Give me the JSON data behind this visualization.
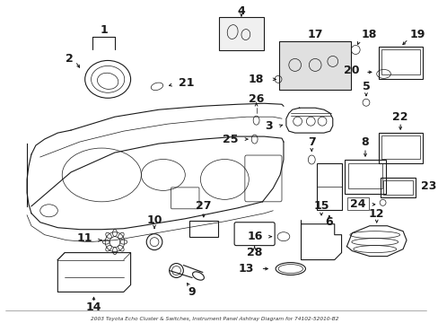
{
  "title": "2003 Toyota Echo Cluster & Switches, Instrument Panel Ashtray Diagram for 74102-52010-B2",
  "bg_color": "#ffffff",
  "line_color": "#1a1a1a",
  "font_size": 8.5,
  "fig_width": 4.89,
  "fig_height": 3.6,
  "dpi": 100,
  "bottom_text": "2003 Toyota Echo Cluster & Switches, Instrument Panel Ashtray Diagram for 74102-52010-B2",
  "border_color": "#aaaaaa"
}
